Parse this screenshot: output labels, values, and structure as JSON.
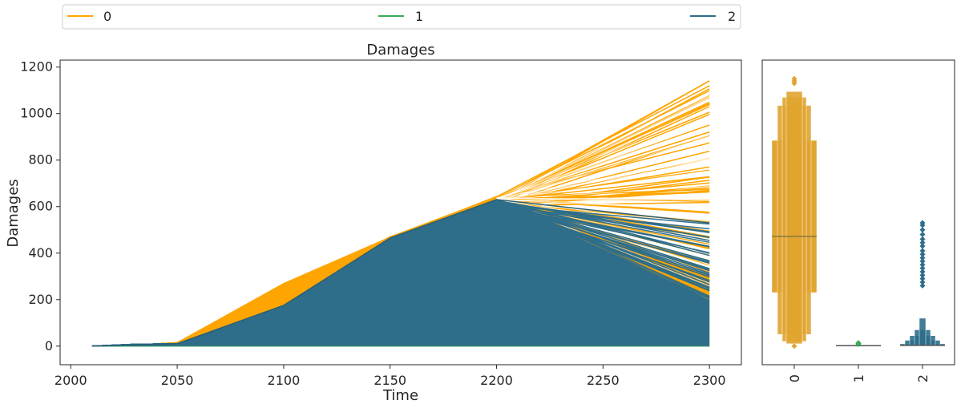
{
  "chart_data": [
    {
      "type": "line",
      "title": "Damages",
      "xlabel": "Time",
      "ylabel": "Damages",
      "xlim": [
        1995,
        2315
      ],
      "ylim": [
        -80,
        1230
      ],
      "xticks": [
        2000,
        2050,
        2100,
        2150,
        2200,
        2250,
        2300
      ],
      "yticks": [
        0,
        200,
        400,
        600,
        800,
        1000,
        1200
      ],
      "grid": false,
      "legend": {
        "placement": "top",
        "entries": [
          "0",
          "1",
          "2"
        ]
      },
      "series": [
        {
          "name": "0",
          "color": "#ffa500",
          "description_points": {
            "x": [
              2010,
              2030,
              2050,
              2100,
              2150,
              2200,
              2300
            ],
            "envelope_upper": [
              0,
              5,
              15,
              270,
              470,
              640,
              1150
            ],
            "envelope_lower": [
              0,
              0,
              0,
              0,
              0,
              0,
              0
            ]
          }
        },
        {
          "name": "1",
          "color": "#3aaa5a",
          "description_points": {
            "x": [
              2010,
              2050,
              2100,
              2150,
              2200,
              2300
            ],
            "envelope_upper": [
              0,
              0,
              0,
              0,
              0,
              0
            ],
            "envelope_lower": [
              0,
              0,
              0,
              0,
              0,
              0
            ]
          }
        },
        {
          "name": "2",
          "color": "#2e6e8a",
          "description_points": {
            "x": [
              2010,
              2050,
              2100,
              2150,
              2200,
              2300
            ],
            "envelope_upper": [
              0,
              10,
              160,
              465,
              630,
              530
            ],
            "envelope_lower": [
              0,
              0,
              0,
              0,
              0,
              0
            ]
          }
        }
      ]
    },
    {
      "type": "boxen",
      "categories": [
        "0",
        "1",
        "2"
      ],
      "colors": [
        "#e0a430",
        "#3aaa5a",
        "#2e6e8a"
      ],
      "ylim": [
        -80,
        1230
      ],
      "boxes": [
        {
          "category": "0",
          "median": 472,
          "levels": [
            [
              230,
              885
            ],
            [
              50,
              1035
            ],
            [
              20,
              1070
            ],
            [
              10,
              1095
            ]
          ],
          "outliers": [
            0,
            1130,
            1140,
            1150
          ]
        },
        {
          "category": "1",
          "median": 2,
          "levels": [
            [
              0,
              4
            ],
            [
              0,
              5
            ]
          ],
          "outliers": [
            8,
            10,
            12,
            14
          ]
        },
        {
          "category": "2",
          "median": 3,
          "levels": [
            [
              0,
              10
            ],
            [
              0,
              25
            ],
            [
              0,
              45
            ],
            [
              0,
              70
            ],
            [
              0,
              120
            ]
          ],
          "outliers": [
            260,
            275,
            290,
            305,
            320,
            335,
            350,
            365,
            380,
            395,
            410,
            430,
            445,
            460,
            480,
            500,
            520,
            530
          ]
        }
      ]
    }
  ]
}
